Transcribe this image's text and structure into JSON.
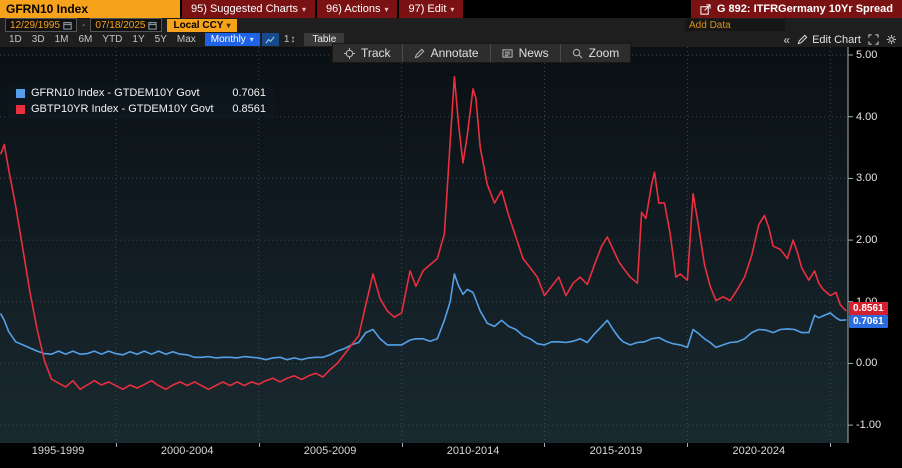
{
  "titlebar": {
    "security": "GFRN10 Index",
    "menu_suggested": "95) Suggested Charts",
    "menu_actions": "96) Actions",
    "menu_edit": "97) Edit",
    "chart_id": "G 892: ITFRGermany 10Yr Spread"
  },
  "icons": {
    "caret_down": "▾",
    "collapse": "«",
    "axis_count": "1",
    "updown_arrow": "↕"
  },
  "toolbar": {
    "date_from": "12/29/1995",
    "date_separator": "-",
    "date_to": "07/18/2025",
    "currency": "Local CCY",
    "periods": [
      "1D",
      "3D",
      "1M",
      "6M",
      "YTD",
      "1Y",
      "5Y",
      "Max"
    ],
    "frequency": "Monthly",
    "table": "Table",
    "add_data_placeholder": "Add Data",
    "edit_chart": "Edit Chart"
  },
  "plot_toolbar": {
    "track": "Track",
    "annotate": "Annotate",
    "news": "News",
    "zoom": "Zoom"
  },
  "chart_data": {
    "type": "line",
    "title": "ITFRGermany 10Yr Spread",
    "x_domain": [
      1995.95,
      2025.62
    ],
    "y_domain": [
      -1.29,
      5.13
    ],
    "grid": true,
    "y_ticks": [
      {
        "v": 5,
        "label": "5.00"
      },
      {
        "v": 4,
        "label": "4.00"
      },
      {
        "v": 3,
        "label": "3.00"
      },
      {
        "v": 2,
        "label": "2.00"
      },
      {
        "v": 1,
        "label": "1.00"
      },
      {
        "v": 0,
        "label": "0.00"
      },
      {
        "v": -1,
        "label": "-1.00"
      }
    ],
    "x_gridlines": [
      2000,
      2005,
      2010,
      2015,
      2020,
      2025
    ],
    "x_sections": [
      {
        "center": 1997.98,
        "label": "1995-1999"
      },
      {
        "center": 2002.5,
        "label": "2000-2004"
      },
      {
        "center": 2007.5,
        "label": "2005-2009"
      },
      {
        "center": 2012.5,
        "label": "2010-2014"
      },
      {
        "center": 2017.5,
        "label": "2015-2019"
      },
      {
        "center": 2022.5,
        "label": "2020-2024"
      }
    ],
    "series": [
      {
        "name": "GFRN10 Index - GTDEM10Y Govt",
        "value": "0.7061",
        "color": "#54a0e8",
        "badge_color": "#2b6be0",
        "points": [
          [
            1995.98,
            0.8
          ],
          [
            1996.1,
            0.7
          ],
          [
            1996.25,
            0.52
          ],
          [
            1996.5,
            0.35
          ],
          [
            1996.75,
            0.3
          ],
          [
            1997.0,
            0.25
          ],
          [
            1997.25,
            0.2
          ],
          [
            1997.5,
            0.16
          ],
          [
            1997.75,
            0.15
          ],
          [
            1998.0,
            0.2
          ],
          [
            1998.25,
            0.15
          ],
          [
            1998.5,
            0.2
          ],
          [
            1998.75,
            0.15
          ],
          [
            1999.0,
            0.16
          ],
          [
            1999.25,
            0.2
          ],
          [
            1999.5,
            0.15
          ],
          [
            1999.75,
            0.2
          ],
          [
            2000.0,
            0.16
          ],
          [
            2000.25,
            0.14
          ],
          [
            2000.5,
            0.19
          ],
          [
            2000.75,
            0.15
          ],
          [
            2001.0,
            0.2
          ],
          [
            2001.25,
            0.15
          ],
          [
            2001.5,
            0.2
          ],
          [
            2001.75,
            0.15
          ],
          [
            2002.0,
            0.19
          ],
          [
            2002.25,
            0.15
          ],
          [
            2002.5,
            0.14
          ],
          [
            2002.75,
            0.1
          ],
          [
            2003.0,
            0.1
          ],
          [
            2003.25,
            0.11
          ],
          [
            2003.5,
            0.09
          ],
          [
            2003.75,
            0.1
          ],
          [
            2004.0,
            0.1
          ],
          [
            2004.25,
            0.09
          ],
          [
            2004.5,
            0.11
          ],
          [
            2004.75,
            0.1
          ],
          [
            2005.0,
            0.09
          ],
          [
            2005.25,
            0.06
          ],
          [
            2005.5,
            0.09
          ],
          [
            2005.75,
            0.1
          ],
          [
            2006.0,
            0.06
          ],
          [
            2006.25,
            0.09
          ],
          [
            2006.5,
            0.06
          ],
          [
            2006.75,
            0.09
          ],
          [
            2007.0,
            0.1
          ],
          [
            2007.25,
            0.1
          ],
          [
            2007.5,
            0.14
          ],
          [
            2007.75,
            0.2
          ],
          [
            2008.0,
            0.24
          ],
          [
            2008.25,
            0.3
          ],
          [
            2008.5,
            0.34
          ],
          [
            2008.75,
            0.5
          ],
          [
            2009.0,
            0.55
          ],
          [
            2009.25,
            0.4
          ],
          [
            2009.5,
            0.3
          ],
          [
            2009.75,
            0.3
          ],
          [
            2010.0,
            0.3
          ],
          [
            2010.3,
            0.38
          ],
          [
            2010.5,
            0.4
          ],
          [
            2010.75,
            0.4
          ],
          [
            2011.0,
            0.36
          ],
          [
            2011.25,
            0.4
          ],
          [
            2011.5,
            0.7
          ],
          [
            2011.7,
            1.0
          ],
          [
            2011.85,
            1.45
          ],
          [
            2012.0,
            1.25
          ],
          [
            2012.15,
            1.12
          ],
          [
            2012.3,
            1.2
          ],
          [
            2012.5,
            1.15
          ],
          [
            2012.75,
            0.85
          ],
          [
            2013.0,
            0.65
          ],
          [
            2013.25,
            0.6
          ],
          [
            2013.5,
            0.7
          ],
          [
            2013.75,
            0.6
          ],
          [
            2014.0,
            0.55
          ],
          [
            2014.25,
            0.45
          ],
          [
            2014.5,
            0.4
          ],
          [
            2014.75,
            0.32
          ],
          [
            2015.0,
            0.3
          ],
          [
            2015.25,
            0.35
          ],
          [
            2015.5,
            0.35
          ],
          [
            2015.75,
            0.34
          ],
          [
            2016.0,
            0.36
          ],
          [
            2016.25,
            0.4
          ],
          [
            2016.5,
            0.34
          ],
          [
            2016.75,
            0.48
          ],
          [
            2017.0,
            0.6
          ],
          [
            2017.2,
            0.7
          ],
          [
            2017.4,
            0.55
          ],
          [
            2017.6,
            0.42
          ],
          [
            2017.75,
            0.35
          ],
          [
            2018.0,
            0.3
          ],
          [
            2018.25,
            0.34
          ],
          [
            2018.5,
            0.35
          ],
          [
            2018.75,
            0.4
          ],
          [
            2019.0,
            0.42
          ],
          [
            2019.25,
            0.36
          ],
          [
            2019.5,
            0.32
          ],
          [
            2019.75,
            0.3
          ],
          [
            2020.0,
            0.26
          ],
          [
            2020.2,
            0.55
          ],
          [
            2020.4,
            0.48
          ],
          [
            2020.6,
            0.4
          ],
          [
            2020.8,
            0.34
          ],
          [
            2021.0,
            0.26
          ],
          [
            2021.25,
            0.3
          ],
          [
            2021.5,
            0.34
          ],
          [
            2021.75,
            0.35
          ],
          [
            2022.0,
            0.4
          ],
          [
            2022.25,
            0.5
          ],
          [
            2022.5,
            0.55
          ],
          [
            2022.75,
            0.54
          ],
          [
            2023.0,
            0.5
          ],
          [
            2023.25,
            0.55
          ],
          [
            2023.5,
            0.56
          ],
          [
            2023.75,
            0.55
          ],
          [
            2024.0,
            0.5
          ],
          [
            2024.25,
            0.5
          ],
          [
            2024.45,
            0.78
          ],
          [
            2024.6,
            0.74
          ],
          [
            2024.75,
            0.77
          ],
          [
            2025.0,
            0.82
          ],
          [
            2025.2,
            0.74
          ],
          [
            2025.35,
            0.7
          ],
          [
            2025.54,
            0.7061
          ]
        ]
      },
      {
        "name": "GBTP10YR Index - GTDEM10Y Govt",
        "value": "0.8561",
        "color": "#ea2f3e",
        "badge_color": "#d4202f",
        "points": [
          [
            1995.98,
            3.4
          ],
          [
            1996.1,
            3.55
          ],
          [
            1996.25,
            3.15
          ],
          [
            1996.5,
            2.55
          ],
          [
            1996.75,
            1.85
          ],
          [
            1997.0,
            1.15
          ],
          [
            1997.25,
            0.55
          ],
          [
            1997.5,
            0.05
          ],
          [
            1997.75,
            -0.25
          ],
          [
            1998.0,
            -0.32
          ],
          [
            1998.25,
            -0.38
          ],
          [
            1998.5,
            -0.28
          ],
          [
            1998.75,
            -0.42
          ],
          [
            1999.0,
            -0.35
          ],
          [
            1999.25,
            -0.28
          ],
          [
            1999.5,
            -0.35
          ],
          [
            1999.75,
            -0.3
          ],
          [
            2000.0,
            -0.36
          ],
          [
            2000.25,
            -0.42
          ],
          [
            2000.5,
            -0.35
          ],
          [
            2000.75,
            -0.4
          ],
          [
            2001.0,
            -0.34
          ],
          [
            2001.25,
            -0.28
          ],
          [
            2001.5,
            -0.36
          ],
          [
            2001.75,
            -0.42
          ],
          [
            2002.0,
            -0.35
          ],
          [
            2002.25,
            -0.3
          ],
          [
            2002.5,
            -0.36
          ],
          [
            2002.75,
            -0.3
          ],
          [
            2003.0,
            -0.36
          ],
          [
            2003.25,
            -0.42
          ],
          [
            2003.5,
            -0.36
          ],
          [
            2003.75,
            -0.3
          ],
          [
            2004.0,
            -0.36
          ],
          [
            2004.25,
            -0.3
          ],
          [
            2004.5,
            -0.36
          ],
          [
            2004.75,
            -0.3
          ],
          [
            2005.0,
            -0.34
          ],
          [
            2005.25,
            -0.28
          ],
          [
            2005.5,
            -0.24
          ],
          [
            2005.75,
            -0.3
          ],
          [
            2006.0,
            -0.24
          ],
          [
            2006.25,
            -0.2
          ],
          [
            2006.5,
            -0.26
          ],
          [
            2006.75,
            -0.2
          ],
          [
            2007.0,
            -0.16
          ],
          [
            2007.25,
            -0.22
          ],
          [
            2007.5,
            -0.1
          ],
          [
            2007.75,
            0.0
          ],
          [
            2008.0,
            0.15
          ],
          [
            2008.25,
            0.3
          ],
          [
            2008.5,
            0.45
          ],
          [
            2008.75,
            0.95
          ],
          [
            2009.0,
            1.45
          ],
          [
            2009.25,
            1.05
          ],
          [
            2009.5,
            0.85
          ],
          [
            2009.75,
            0.75
          ],
          [
            2010.0,
            0.82
          ],
          [
            2010.3,
            1.5
          ],
          [
            2010.5,
            1.25
          ],
          [
            2010.75,
            1.5
          ],
          [
            2011.0,
            1.6
          ],
          [
            2011.25,
            1.7
          ],
          [
            2011.5,
            2.1
          ],
          [
            2011.7,
            3.6
          ],
          [
            2011.85,
            4.65
          ],
          [
            2012.0,
            3.85
          ],
          [
            2012.15,
            3.25
          ],
          [
            2012.3,
            3.7
          ],
          [
            2012.5,
            4.45
          ],
          [
            2012.6,
            4.3
          ],
          [
            2012.75,
            3.5
          ],
          [
            2013.0,
            2.9
          ],
          [
            2013.25,
            2.6
          ],
          [
            2013.5,
            2.8
          ],
          [
            2013.75,
            2.4
          ],
          [
            2014.0,
            2.05
          ],
          [
            2014.25,
            1.7
          ],
          [
            2014.5,
            1.55
          ],
          [
            2014.75,
            1.4
          ],
          [
            2015.0,
            1.1
          ],
          [
            2015.25,
            1.25
          ],
          [
            2015.5,
            1.4
          ],
          [
            2015.75,
            1.1
          ],
          [
            2016.0,
            1.3
          ],
          [
            2016.25,
            1.4
          ],
          [
            2016.5,
            1.28
          ],
          [
            2016.75,
            1.6
          ],
          [
            2017.0,
            1.9
          ],
          [
            2017.2,
            2.05
          ],
          [
            2017.4,
            1.85
          ],
          [
            2017.6,
            1.65
          ],
          [
            2017.75,
            1.55
          ],
          [
            2018.0,
            1.4
          ],
          [
            2018.25,
            1.3
          ],
          [
            2018.4,
            2.45
          ],
          [
            2018.55,
            2.35
          ],
          [
            2018.75,
            2.9
          ],
          [
            2018.85,
            3.1
          ],
          [
            2019.0,
            2.6
          ],
          [
            2019.2,
            2.6
          ],
          [
            2019.4,
            2.1
          ],
          [
            2019.6,
            1.4
          ],
          [
            2019.75,
            1.45
          ],
          [
            2020.0,
            1.35
          ],
          [
            2020.2,
            2.75
          ],
          [
            2020.4,
            2.2
          ],
          [
            2020.6,
            1.6
          ],
          [
            2020.8,
            1.25
          ],
          [
            2021.0,
            1.02
          ],
          [
            2021.25,
            1.08
          ],
          [
            2021.5,
            1.02
          ],
          [
            2021.75,
            1.2
          ],
          [
            2022.0,
            1.4
          ],
          [
            2022.25,
            1.75
          ],
          [
            2022.5,
            2.25
          ],
          [
            2022.7,
            2.4
          ],
          [
            2022.85,
            2.2
          ],
          [
            2023.0,
            1.9
          ],
          [
            2023.25,
            1.85
          ],
          [
            2023.5,
            1.7
          ],
          [
            2023.7,
            2.0
          ],
          [
            2023.85,
            1.8
          ],
          [
            2024.0,
            1.55
          ],
          [
            2024.25,
            1.35
          ],
          [
            2024.45,
            1.5
          ],
          [
            2024.6,
            1.3
          ],
          [
            2024.75,
            1.2
          ],
          [
            2025.0,
            1.1
          ],
          [
            2025.2,
            1.15
          ],
          [
            2025.35,
            0.95
          ],
          [
            2025.54,
            0.8561
          ]
        ]
      }
    ]
  }
}
